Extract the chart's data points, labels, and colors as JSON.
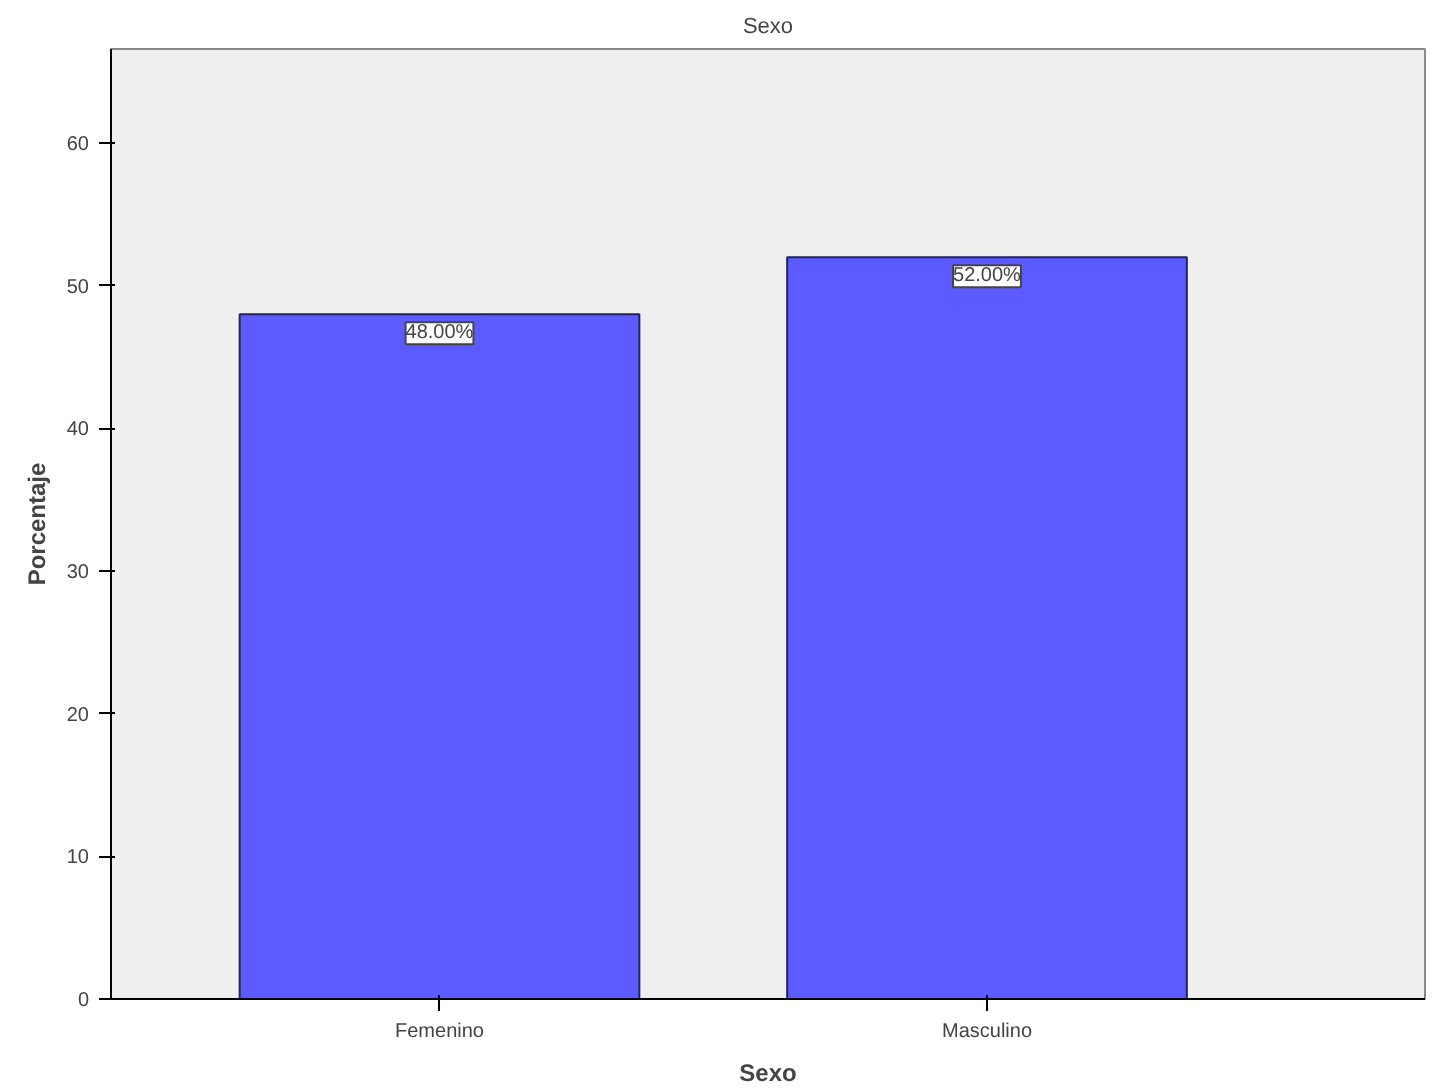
{
  "chart_data": {
    "type": "bar",
    "title": "Sexo",
    "xlabel": "Sexo",
    "ylabel": "Porcentaje",
    "categories": [
      "Femenino",
      "Masculino"
    ],
    "values": [
      48,
      52
    ],
    "color": "#5b5bff",
    "value_labels": [
      "48.00%",
      "52.00%"
    ],
    "ylim": [
      0,
      66.6
    ],
    "yticks": [
      0,
      10,
      20,
      30,
      40,
      50,
      60
    ],
    "grid": false
  }
}
